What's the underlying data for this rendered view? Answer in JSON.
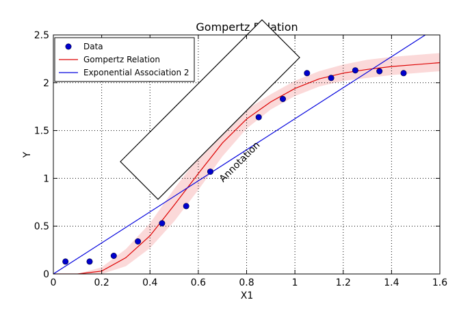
{
  "chart_data": {
    "type": "scatter",
    "title": "Gompertz Relation",
    "xlabel": "X1",
    "ylabel": "Y",
    "xlim": [
      0,
      1.6
    ],
    "ylim": [
      0,
      2.5
    ],
    "xticks": [
      "0",
      "0.2",
      "0.4",
      "0.6",
      "0.8",
      "1",
      "1.2",
      "1.4",
      "1.6"
    ],
    "yticks": [
      "0",
      "0.5",
      "1",
      "1.5",
      "2",
      "2.5"
    ],
    "grid": true,
    "legend_position": "top-left",
    "series": [
      {
        "name": "Data",
        "kind": "points",
        "color": "#0000cc",
        "x": [
          0.05,
          0.15,
          0.25,
          0.35,
          0.45,
          0.55,
          0.65,
          0.85,
          0.95,
          1.05,
          1.15,
          1.25,
          1.35,
          1.45
        ],
        "y": [
          0.13,
          0.13,
          0.19,
          0.34,
          0.53,
          0.71,
          1.07,
          1.64,
          1.83,
          2.1,
          2.05,
          2.13,
          2.12,
          2.1
        ]
      },
      {
        "name": "Gompertz Relation",
        "kind": "curve",
        "color": "#dd0000",
        "band_color": "#f9cccc",
        "x": [
          0.0,
          0.1,
          0.2,
          0.3,
          0.4,
          0.5,
          0.6,
          0.7,
          0.8,
          0.9,
          1.0,
          1.1,
          1.2,
          1.3,
          1.4,
          1.5,
          1.6
        ],
        "y": [
          0.0,
          0.0,
          0.03,
          0.17,
          0.4,
          0.72,
          1.05,
          1.37,
          1.62,
          1.8,
          1.94,
          2.04,
          2.1,
          2.14,
          2.17,
          2.19,
          2.21
        ],
        "lower": [
          0.0,
          0.0,
          0.0,
          0.08,
          0.27,
          0.55,
          0.88,
          1.23,
          1.52,
          1.72,
          1.86,
          1.96,
          2.02,
          2.05,
          2.08,
          2.1,
          2.12
        ],
        "upper": [
          0.0,
          0.0,
          0.07,
          0.26,
          0.53,
          0.89,
          1.22,
          1.51,
          1.72,
          1.88,
          2.02,
          2.12,
          2.19,
          2.24,
          2.27,
          2.29,
          2.31
        ]
      },
      {
        "name": "Exponential Association 2",
        "kind": "line",
        "color": "#0000dd",
        "x": [
          0.0,
          1.54
        ],
        "y": [
          0.0,
          2.5
        ]
      }
    ],
    "annotation": {
      "text": "Annotation",
      "rotation_deg": -45,
      "anchor_xy": [
        0.78,
        1.15
      ]
    }
  }
}
